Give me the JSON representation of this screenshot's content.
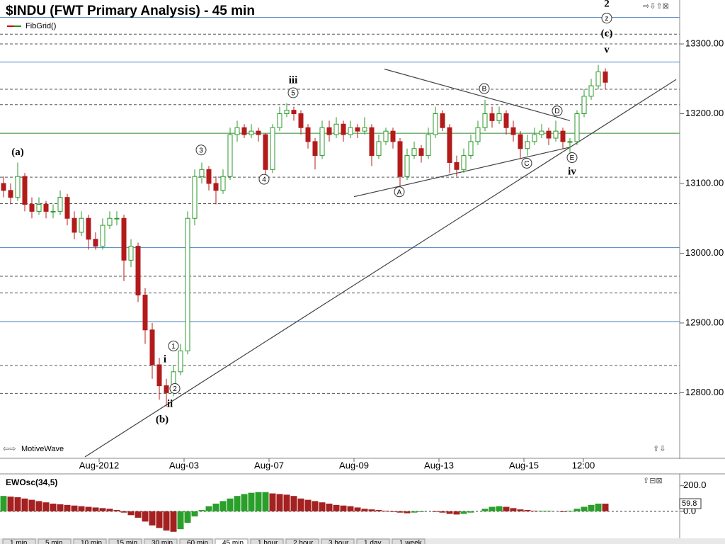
{
  "chart_data": [
    {
      "type": "candlestick",
      "title": "$INDU (FWT Primary Analysis) - 45 min",
      "indicator": "FibGrid()",
      "footer": "MotiveWave",
      "up_color": "#2a9a2a",
      "down_color": "#b31b1b",
      "xlim": [
        -0.5,
        95.5
      ],
      "ylim": [
        12708,
        13363
      ],
      "xticks": [
        {
          "value": 13.5,
          "label": "Aug-2012"
        },
        {
          "value": 25.5,
          "label": "Aug-03"
        },
        {
          "value": 37.5,
          "label": "Aug-07"
        },
        {
          "value": 49.5,
          "label": "Aug-09"
        },
        {
          "value": 61.5,
          "label": "Aug-13"
        },
        {
          "value": 73.5,
          "label": "Aug-15"
        },
        {
          "value": 81.9,
          "label": "12:00"
        }
      ],
      "yticks": [
        {
          "value": 12800,
          "label": "12800.00"
        },
        {
          "value": 12900,
          "label": "12900.00"
        },
        {
          "value": 13000,
          "label": "13000.00"
        },
        {
          "value": 13100,
          "label": "13100.00"
        },
        {
          "value": 13200,
          "label": "13200.00"
        },
        {
          "value": 13300,
          "label": "13300.00"
        }
      ],
      "fib_levels": [
        {
          "value": 13338,
          "color": "#4a7fc0",
          "dashed": false
        },
        {
          "value": 13314,
          "color": "#555555",
          "dashed": true
        },
        {
          "value": 13300,
          "color": "#555555",
          "dashed": true
        },
        {
          "value": 13274,
          "color": "#4a7fc0",
          "dashed": false
        },
        {
          "value": 13235,
          "color": "#555555",
          "dashed": true
        },
        {
          "value": 13213,
          "color": "#555555",
          "dashed": true
        },
        {
          "value": 13172,
          "color": "#2a8a2a",
          "dashed": false
        },
        {
          "value": 13109,
          "color": "#555555",
          "dashed": true
        },
        {
          "value": 13071,
          "color": "#555555",
          "dashed": true
        },
        {
          "value": 13008,
          "color": "#4a7fc0",
          "dashed": false
        },
        {
          "value": 12967,
          "color": "#555555",
          "dashed": true
        },
        {
          "value": 12943,
          "color": "#555555",
          "dashed": true
        },
        {
          "value": 12902,
          "color": "#4a7fc0",
          "dashed": false
        },
        {
          "value": 12839,
          "color": "#555555",
          "dashed": true
        },
        {
          "value": 12799,
          "color": "#555555",
          "dashed": true
        }
      ],
      "trendlines": [
        [
          53.8,
          13264,
          80,
          13190
        ],
        [
          49.5,
          13081,
          80,
          13152
        ],
        [
          11.5,
          12708,
          95,
          13249
        ]
      ],
      "annotations": [
        {
          "text": "(a)",
          "x": 2,
          "y": 13145,
          "circled": false
        },
        {
          "text": "(b)",
          "x": 22.4,
          "y": 12762,
          "circled": false
        },
        {
          "text": "i",
          "x": 22.8,
          "y": 12848,
          "circled": false
        },
        {
          "text": "ii",
          "x": 23.5,
          "y": 12784,
          "circled": false
        },
        {
          "text": "1",
          "x": 24,
          "y": 12867,
          "circled": true
        },
        {
          "text": "2",
          "x": 24.2,
          "y": 12806,
          "circled": true
        },
        {
          "text": "3",
          "x": 27.9,
          "y": 13148,
          "circled": true
        },
        {
          "text": "4",
          "x": 36.8,
          "y": 13106,
          "circled": true
        },
        {
          "text": "5",
          "x": 40.9,
          "y": 13230,
          "circled": true
        },
        {
          "text": "iii",
          "x": 40.9,
          "y": 13248,
          "circled": false
        },
        {
          "text": "A",
          "x": 55.9,
          "y": 13088,
          "circled": true
        },
        {
          "text": "B",
          "x": 67.9,
          "y": 13236,
          "circled": true
        },
        {
          "text": "C",
          "x": 73.9,
          "y": 13129,
          "circled": true
        },
        {
          "text": "D",
          "x": 78.2,
          "y": 13204,
          "circled": true
        },
        {
          "text": "E",
          "x": 80.3,
          "y": 13137,
          "circled": true
        },
        {
          "text": "iv",
          "x": 80.3,
          "y": 13117,
          "circled": false
        },
        {
          "text": "v",
          "x": 85.2,
          "y": 13292,
          "circled": false
        },
        {
          "text": "(c)",
          "x": 85.2,
          "y": 13315,
          "circled": false
        },
        {
          "text": "z",
          "x": 85.2,
          "y": 13337,
          "circled": true
        },
        {
          "text": "2",
          "x": 85.2,
          "y": 13358,
          "circled": false
        }
      ],
      "candles": [
        [
          13100,
          13110,
          13080,
          13090
        ],
        [
          13090,
          13100,
          13070,
          13080
        ],
        [
          13080,
          13130,
          13075,
          13110
        ],
        [
          13110,
          13115,
          13060,
          13070
        ],
        [
          13070,
          13080,
          13050,
          13060
        ],
        [
          13060,
          13080,
          13055,
          13070
        ],
        [
          13070,
          13075,
          13050,
          13060
        ],
        [
          13060,
          13070,
          13050,
          13060
        ],
        [
          13060,
          13090,
          13055,
          13080
        ],
        [
          13080,
          13085,
          13040,
          13050
        ],
        [
          13050,
          13060,
          13020,
          13030
        ],
        [
          13030,
          13060,
          13025,
          13050
        ],
        [
          13050,
          13055,
          13005,
          13020
        ],
        [
          13020,
          13030,
          13005,
          13010
        ],
        [
          13010,
          13050,
          13005,
          13040
        ],
        [
          13040,
          13060,
          13035,
          13050
        ],
        [
          13050,
          13060,
          13040,
          13050
        ],
        [
          13050,
          13055,
          12960,
          12990
        ],
        [
          12990,
          13020,
          12980,
          13010
        ],
        [
          13010,
          13015,
          12930,
          12940
        ],
        [
          12940,
          12950,
          12870,
          12890
        ],
        [
          12890,
          12900,
          12820,
          12840
        ],
        [
          12840,
          12850,
          12790,
          12810
        ],
        [
          12810,
          12820,
          12780,
          12800
        ],
        [
          12800,
          12840,
          12795,
          12830
        ],
        [
          12830,
          12870,
          12825,
          12860
        ],
        [
          12860,
          13060,
          12855,
          13050
        ],
        [
          13050,
          13120,
          13040,
          13110
        ],
        [
          13110,
          13130,
          13100,
          13120
        ],
        [
          13120,
          13125,
          13090,
          13100
        ],
        [
          13100,
          13110,
          13070,
          13090
        ],
        [
          13090,
          13120,
          13085,
          13110
        ],
        [
          13110,
          13180,
          13105,
          13170
        ],
        [
          13170,
          13190,
          13160,
          13180
        ],
        [
          13180,
          13185,
          13165,
          13170
        ],
        [
          13170,
          13185,
          13165,
          13175
        ],
        [
          13175,
          13180,
          13160,
          13170
        ],
        [
          13170,
          13172,
          13110,
          13120
        ],
        [
          13120,
          13185,
          13115,
          13180
        ],
        [
          13180,
          13210,
          13175,
          13200
        ],
        [
          13200,
          13215,
          13195,
          13205
        ],
        [
          13205,
          13210,
          13190,
          13200
        ],
        [
          13200,
          13205,
          13170,
          13180
        ],
        [
          13180,
          13185,
          13150,
          13160
        ],
        [
          13160,
          13165,
          13120,
          13140
        ],
        [
          13140,
          13190,
          13135,
          13180
        ],
        [
          13180,
          13190,
          13160,
          13170
        ],
        [
          13170,
          13195,
          13165,
          13185
        ],
        [
          13185,
          13190,
          13160,
          13170
        ],
        [
          13170,
          13190,
          13165,
          13180
        ],
        [
          13180,
          13185,
          13165,
          13175
        ],
        [
          13175,
          13195,
          13170,
          13180
        ],
        [
          13180,
          13185,
          13125,
          13140
        ],
        [
          13140,
          13170,
          13135,
          13160
        ],
        [
          13160,
          13180,
          13155,
          13175
        ],
        [
          13175,
          13180,
          13150,
          13160
        ],
        [
          13160,
          13165,
          13090,
          13110
        ],
        [
          13110,
          13150,
          13105,
          13140
        ],
        [
          13140,
          13160,
          13135,
          13150
        ],
        [
          13150,
          13155,
          13130,
          13140
        ],
        [
          13140,
          13180,
          13135,
          13170
        ],
        [
          13170,
          13210,
          13165,
          13200
        ],
        [
          13200,
          13205,
          13175,
          13180
        ],
        [
          13180,
          13185,
          13115,
          13130
        ],
        [
          13130,
          13140,
          13110,
          13120
        ],
        [
          13120,
          13150,
          13115,
          13140
        ],
        [
          13140,
          13170,
          13135,
          13160
        ],
        [
          13160,
          13190,
          13155,
          13180
        ],
        [
          13180,
          13220,
          13175,
          13200
        ],
        [
          13200,
          13210,
          13180,
          13190
        ],
        [
          13190,
          13210,
          13185,
          13200
        ],
        [
          13200,
          13205,
          13170,
          13180
        ],
        [
          13180,
          13190,
          13160,
          13170
        ],
        [
          13170,
          13175,
          13135,
          13150
        ],
        [
          13150,
          13170,
          13140,
          13160
        ],
        [
          13160,
          13180,
          13155,
          13170
        ],
        [
          13170,
          13185,
          13165,
          13175
        ],
        [
          13175,
          13180,
          13155,
          13165
        ],
        [
          13165,
          13190,
          13160,
          13175
        ],
        [
          13175,
          13180,
          13150,
          13160
        ],
        [
          13160,
          13165,
          13140,
          13160
        ],
        [
          13160,
          13205,
          13155,
          13200
        ],
        [
          13200,
          13235,
          13195,
          13225
        ],
        [
          13225,
          13250,
          13220,
          13240
        ],
        [
          13240,
          13270,
          13235,
          13260
        ],
        [
          13260,
          13265,
          13235,
          13245
        ]
      ]
    },
    {
      "type": "oscillator",
      "title": "EWOsc(34,5)",
      "up_color": "#2aa02a",
      "down_color": "#a52020",
      "xlim": [
        -0.5,
        95.5
      ],
      "ylim": [
        -200,
        276
      ],
      "yticks": [
        {
          "value": 0,
          "label": "0.0"
        },
        {
          "value": 200,
          "label": "200.0"
        }
      ],
      "last_value_label": "59.8",
      "values": [
        120,
        115,
        110,
        100,
        90,
        80,
        70,
        60,
        55,
        50,
        45,
        40,
        35,
        30,
        25,
        20,
        10,
        -10,
        -30,
        -50,
        -80,
        -110,
        -130,
        -150,
        -160,
        -140,
        -90,
        -40,
        10,
        40,
        60,
        80,
        100,
        120,
        135,
        145,
        150,
        150,
        140,
        135,
        130,
        120,
        100,
        90,
        80,
        70,
        60,
        50,
        45,
        40,
        30,
        20,
        15,
        10,
        5,
        -5,
        -10,
        -15,
        -10,
        -5,
        0,
        -5,
        -10,
        -20,
        -25,
        -20,
        -10,
        0,
        20,
        35,
        40,
        35,
        25,
        15,
        10,
        5,
        5,
        5,
        0,
        -5,
        5,
        20,
        35,
        50,
        60,
        59.8
      ]
    }
  ],
  "tabs": [
    "1 min",
    "5 min",
    "10 min",
    "15 min",
    "30 min",
    "60 min",
    "45 min",
    "1 hour",
    "2 hour",
    "3 hour",
    "1 day",
    "1 week"
  ]
}
